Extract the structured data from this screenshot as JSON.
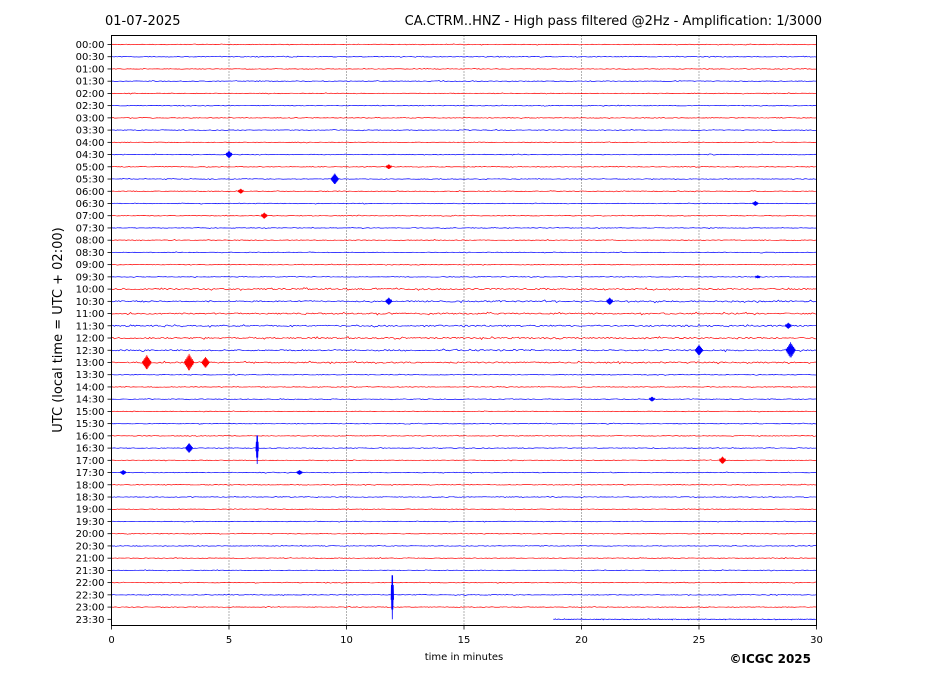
{
  "header": {
    "date": "01-07-2025",
    "title": "CA.CTRM..HNZ - High pass filtered @2Hz - Amplification: 1/3000"
  },
  "footer": {
    "copyright": "©ICGC 2025"
  },
  "chart_data": {
    "type": "line",
    "title": "CA.CTRM..HNZ - High pass filtered @2Hz - Amplification: 1/3000",
    "xlabel": "time in minutes",
    "ylabel": "UTC (local time = UTC + 02:00)",
    "xlim": [
      0,
      30
    ],
    "xticks": [
      0,
      5,
      10,
      15,
      20,
      25,
      30
    ],
    "vertical_gridlines": [
      5,
      10,
      15,
      20,
      25
    ],
    "grid": "dotted vertical",
    "rows": [
      "00:00",
      "00:30",
      "01:00",
      "01:30",
      "02:00",
      "02:30",
      "03:00",
      "03:30",
      "04:00",
      "04:30",
      "05:00",
      "05:30",
      "06:00",
      "06:30",
      "07:00",
      "07:30",
      "08:00",
      "08:30",
      "09:00",
      "09:30",
      "10:00",
      "10:30",
      "11:00",
      "11:30",
      "12:00",
      "12:30",
      "13:00",
      "13:30",
      "14:00",
      "14:30",
      "15:00",
      "15:30",
      "16:00",
      "16:30",
      "17:00",
      "17:30",
      "18:00",
      "18:30",
      "19:00",
      "19:30",
      "20:00",
      "20:30",
      "21:00",
      "21:30",
      "22:00",
      "22:30",
      "23:00",
      "23:30"
    ],
    "row_colors": [
      "#ff0000",
      "#0000ff"
    ],
    "events": [
      {
        "row": "04:30",
        "minute": 5.0,
        "amplitude": 0.6
      },
      {
        "row": "05:00",
        "minute": 11.8,
        "amplitude": 0.4
      },
      {
        "row": "05:30",
        "minute": 9.5,
        "amplitude": 0.9
      },
      {
        "row": "06:00",
        "minute": 5.5,
        "amplitude": 0.4
      },
      {
        "row": "06:30",
        "minute": 27.4,
        "amplitude": 0.4
      },
      {
        "row": "07:00",
        "minute": 6.5,
        "amplitude": 0.5
      },
      {
        "row": "09:30",
        "minute": 27.5,
        "amplitude": 0.25
      },
      {
        "row": "10:30",
        "minute": 11.8,
        "amplitude": 0.6
      },
      {
        "row": "10:30",
        "minute": 21.2,
        "amplitude": 0.6
      },
      {
        "row": "11:30",
        "minute": 28.8,
        "amplitude": 0.5
      },
      {
        "row": "12:30",
        "minute": 25.0,
        "amplitude": 0.9
      },
      {
        "row": "12:30",
        "minute": 28.9,
        "amplitude": 1.3
      },
      {
        "row": "13:00",
        "minute": 1.5,
        "amplitude": 1.2
      },
      {
        "row": "13:00",
        "minute": 3.3,
        "amplitude": 1.4
      },
      {
        "row": "13:00",
        "minute": 4.0,
        "amplitude": 0.9
      },
      {
        "row": "14:30",
        "minute": 23.0,
        "amplitude": 0.4
      },
      {
        "row": "16:30",
        "minute": 6.2,
        "amplitude": 2.6
      },
      {
        "row": "16:30",
        "minute": 3.3,
        "amplitude": 0.8
      },
      {
        "row": "17:00",
        "minute": 26.0,
        "amplitude": 0.6
      },
      {
        "row": "17:30",
        "minute": 0.5,
        "amplitude": 0.4
      },
      {
        "row": "17:30",
        "minute": 8.0,
        "amplitude": 0.4
      },
      {
        "row": "22:30",
        "minute": 11.95,
        "amplitude": 4.0
      }
    ],
    "data_gap": {
      "row": "23:30",
      "from_minute": 0,
      "to_minute": 18.8
    }
  }
}
